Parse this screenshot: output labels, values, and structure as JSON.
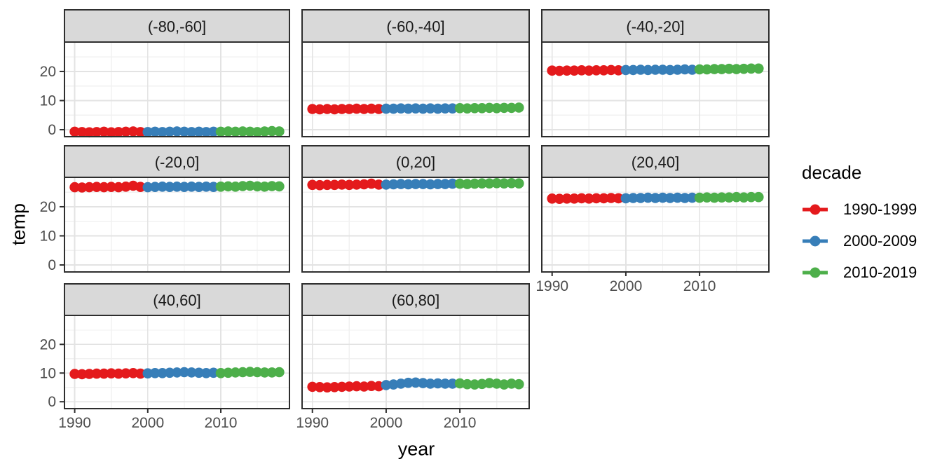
{
  "chart_data": {
    "type": "scatter",
    "xlabel": "year",
    "ylabel": "temp",
    "facet_by": "latitude band",
    "x_ticks": [
      1990,
      2000,
      2010
    ],
    "y_ticks": [
      0,
      10,
      20
    ],
    "x_minor": [
      1995,
      2005,
      2015
    ],
    "y_minor": [
      5,
      15,
      25
    ],
    "xlim": [
      1988.6,
      2019.4
    ],
    "ylim": [
      -2.4,
      30.1
    ],
    "grid": "major+minor",
    "x": [
      1990,
      1991,
      1992,
      1993,
      1994,
      1995,
      1996,
      1997,
      1998,
      1999,
      2000,
      2001,
      2002,
      2003,
      2004,
      2005,
      2006,
      2007,
      2008,
      2009,
      2010,
      2011,
      2012,
      2013,
      2014,
      2015,
      2016,
      2017,
      2018
    ],
    "legend": {
      "title": "decade",
      "position": "right",
      "entries": [
        {
          "label": "1990-1999",
          "color": "#E41A1C",
          "span": [
            1990,
            1999
          ]
        },
        {
          "label": "2000-2009",
          "color": "#377EB8",
          "span": [
            2000,
            2009
          ]
        },
        {
          "label": "2010-2019",
          "color": "#4DAF4A",
          "span": [
            2010,
            2019
          ]
        }
      ]
    },
    "facets": [
      {
        "label": "(-80,-60]",
        "values": [
          -0.7,
          -0.8,
          -0.9,
          -0.8,
          -0.7,
          -0.9,
          -0.8,
          -0.7,
          -0.6,
          -0.8,
          -0.8,
          -0.7,
          -0.8,
          -0.7,
          -0.6,
          -0.7,
          -0.8,
          -0.7,
          -0.8,
          -0.7,
          -0.7,
          -0.6,
          -0.7,
          -0.6,
          -0.7,
          -0.8,
          -0.6,
          -0.5,
          -0.6
        ]
      },
      {
        "label": "(-60,-40]",
        "values": [
          7.1,
          7.0,
          7.1,
          7.0,
          7.1,
          7.1,
          7.2,
          7.1,
          7.2,
          7.1,
          7.2,
          7.2,
          7.3,
          7.2,
          7.3,
          7.2,
          7.3,
          7.2,
          7.3,
          7.3,
          7.4,
          7.3,
          7.4,
          7.4,
          7.5,
          7.4,
          7.5,
          7.5,
          7.6
        ]
      },
      {
        "label": "(-40,-20]",
        "values": [
          20.3,
          20.2,
          20.3,
          20.3,
          20.4,
          20.3,
          20.4,
          20.4,
          20.5,
          20.4,
          20.5,
          20.5,
          20.6,
          20.5,
          20.6,
          20.6,
          20.5,
          20.6,
          20.7,
          20.6,
          20.7,
          20.7,
          20.8,
          20.8,
          20.9,
          20.8,
          20.9,
          21.0,
          21.0
        ]
      },
      {
        "label": "(-20,0]",
        "values": [
          26.7,
          26.6,
          26.7,
          26.8,
          26.7,
          26.8,
          26.7,
          26.9,
          27.2,
          26.8,
          26.7,
          26.8,
          26.9,
          26.8,
          26.9,
          26.8,
          26.9,
          26.8,
          26.9,
          26.8,
          26.9,
          27.0,
          26.9,
          27.1,
          27.2,
          27.0,
          26.9,
          27.1,
          27.0
        ]
      },
      {
        "label": "(0,20]",
        "values": [
          27.5,
          27.4,
          27.5,
          27.5,
          27.6,
          27.5,
          27.6,
          27.7,
          27.9,
          27.6,
          27.6,
          27.7,
          27.8,
          27.7,
          27.8,
          27.8,
          27.7,
          27.8,
          27.8,
          27.9,
          27.9,
          27.8,
          27.9,
          28.0,
          28.0,
          28.1,
          28.0,
          28.1,
          28.0
        ]
      },
      {
        "label": "(20,40]",
        "values": [
          22.8,
          22.7,
          22.8,
          22.8,
          22.9,
          22.8,
          22.9,
          22.9,
          23.0,
          22.9,
          22.9,
          23.0,
          23.0,
          23.1,
          23.0,
          23.1,
          23.0,
          23.1,
          23.0,
          23.1,
          23.1,
          23.2,
          23.1,
          23.2,
          23.2,
          23.3,
          23.2,
          23.3,
          23.3
        ]
      },
      {
        "label": "(40,60]",
        "values": [
          9.7,
          9.6,
          9.7,
          9.8,
          9.8,
          9.9,
          9.8,
          9.9,
          10.0,
          9.8,
          9.9,
          10.0,
          10.0,
          10.1,
          10.2,
          10.3,
          10.2,
          10.1,
          10.0,
          10.1,
          10.0,
          10.1,
          10.2,
          10.3,
          10.4,
          10.3,
          10.2,
          10.2,
          10.3
        ]
      },
      {
        "label": "(60,80]",
        "values": [
          5.2,
          5.1,
          5.0,
          5.1,
          5.2,
          5.3,
          5.4,
          5.3,
          5.5,
          5.4,
          5.8,
          6.0,
          6.3,
          6.6,
          6.7,
          6.5,
          6.3,
          6.4,
          6.3,
          6.3,
          6.4,
          6.1,
          6.0,
          6.2,
          6.5,
          6.3,
          6.0,
          6.3,
          6.1
        ]
      }
    ],
    "colors": {
      "decade_1990s": "#E41A1C",
      "decade_2000s": "#377EB8",
      "decade_2010s": "#4DAF4A",
      "strip_background": "#D9D9D9",
      "panel_border": "#2E2E2E",
      "grid_major": "#E3E3E3",
      "grid_minor": "#F1F1F1",
      "tick_text": "#4D4D4D"
    }
  }
}
